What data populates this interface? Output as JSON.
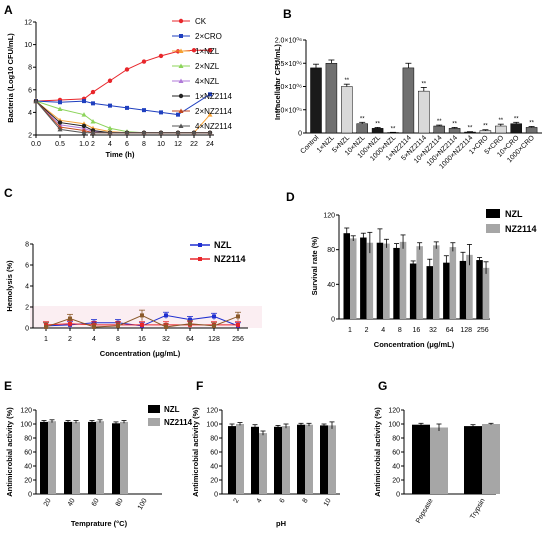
{
  "chart_data": [
    {
      "id": "A",
      "panel_label": "A",
      "type": "line",
      "ylabel": "Bacteria (Log10 CFU/mL)",
      "xlabel": "Time (h)",
      "x": [
        0,
        0.5,
        1,
        2,
        4,
        6,
        8,
        10,
        12,
        22,
        24
      ],
      "x_tick_labels": [
        "0.0",
        "0.5",
        "1.0",
        "2",
        "4",
        "6",
        "8",
        "10",
        "12",
        "22",
        "24"
      ],
      "y_ticks": [
        2,
        4,
        6,
        8,
        10,
        12
      ],
      "ylim": [
        2,
        12
      ],
      "series": [
        {
          "name": "CK",
          "color": "#e8262b",
          "marker": "circle",
          "values": [
            5.0,
            5.1,
            5.2,
            5.8,
            6.8,
            7.8,
            8.5,
            9.0,
            9.4,
            9.5,
            9.5
          ]
        },
        {
          "name": "2×CRO",
          "color": "#1f3fbf",
          "marker": "square",
          "values": [
            5.0,
            4.9,
            5.0,
            4.8,
            4.6,
            4.4,
            4.2,
            4.0,
            3.8,
            null,
            5.6
          ]
        },
        {
          "name": "1×NZL",
          "color": "#f5a033",
          "marker": "triangle",
          "values": [
            5.0,
            3.3,
            3.0,
            2.6,
            2.3,
            2.2,
            2.2,
            2.2,
            2.2,
            2.2,
            3.8
          ]
        },
        {
          "name": "2×NZL",
          "color": "#8cd45a",
          "marker": "triangle",
          "values": [
            5.0,
            4.3,
            3.8,
            3.2,
            2.6,
            2.3,
            2.2,
            2.2,
            2.2,
            2.2,
            2.2
          ]
        },
        {
          "name": "4×NZL",
          "color": "#b07ad8",
          "marker": "triangle",
          "values": [
            5.0,
            2.9,
            2.6,
            2.3,
            2.2,
            2.2,
            2.2,
            2.2,
            2.2,
            2.2,
            2.2
          ]
        },
        {
          "name": "1×NZ2114",
          "color": "#222222",
          "marker": "circle",
          "values": [
            5.0,
            3.1,
            2.8,
            2.4,
            2.2,
            2.2,
            2.2,
            2.2,
            2.2,
            2.2,
            2.2
          ]
        },
        {
          "name": "2×NZ2114",
          "color": "#c2461e",
          "marker": "triangle",
          "values": [
            5.0,
            2.7,
            2.4,
            2.2,
            2.2,
            2.2,
            2.2,
            2.2,
            2.2,
            2.2,
            2.2
          ]
        },
        {
          "name": "4×NZ2114",
          "color": "#555555",
          "marker": "triangle",
          "values": [
            5.0,
            2.5,
            2.2,
            2.2,
            2.2,
            2.2,
            2.2,
            2.2,
            2.2,
            2.2,
            2.2
          ]
        }
      ]
    },
    {
      "id": "B",
      "panel_label": "B",
      "type": "bar",
      "ylabel": "Intracellular CFU/mL)",
      "y_ticks": [
        0,
        500000,
        1000000,
        1500000,
        2000000
      ],
      "y_tick_labels": [
        "0",
        "5.0×10⁰⁵",
        "1.0×10⁰⁶",
        "1.5×10⁰⁶",
        "2.0×10⁰⁶"
      ],
      "ylim": [
        0,
        2000000
      ],
      "categories": [
        "Control",
        "1×NZL",
        "5×NZL",
        "10×NZL",
        "100×NZL",
        "1000×NZL",
        "1×NZ2114",
        "5×NZ2114",
        "10×NZ2114",
        "100×NZ2114",
        "1000×NZ2114",
        "1×CRO",
        "5×CRO",
        "10×CRO",
        "1000×CRO"
      ],
      "values": [
        1400000,
        1500000,
        1000000,
        200000,
        100000,
        10000,
        1400000,
        900000,
        150000,
        100000,
        20000,
        50000,
        150000,
        200000,
        120000
      ],
      "errors": [
        80000,
        70000,
        50000,
        30000,
        20000,
        5000,
        100000,
        80000,
        20000,
        20000,
        8000,
        20000,
        40000,
        30000,
        20000
      ],
      "colors": [
        "#1a1a1a",
        "#707070",
        "#d9d9d9",
        "#707070",
        "#1a1a1a",
        "#1a1a1a",
        "#707070",
        "#d9d9d9",
        "#707070",
        "#707070",
        "#1a1a1a",
        "#d9d9d9",
        "#d9d9d9",
        "#1a1a1a",
        "#707070"
      ],
      "significance": [
        "",
        "",
        "**",
        "**",
        "**",
        "**",
        "",
        "**",
        "**",
        "**",
        "**",
        "**",
        "**",
        "**",
        "**"
      ]
    },
    {
      "id": "C",
      "panel_label": "C",
      "type": "line",
      "ylabel": "Hemolysis (%)",
      "xlabel": "Concentration (μg/mL)",
      "categories": [
        "1",
        "2",
        "4",
        "8",
        "16",
        "32",
        "64",
        "128",
        "256"
      ],
      "y_ticks": [
        0,
        2,
        4,
        6,
        8
      ],
      "ylim": [
        0,
        8
      ],
      "series": [
        {
          "name": "NZL",
          "color": "#1f2fd0",
          "values": [
            0.2,
            0.3,
            0.5,
            0.5,
            0.2,
            1.2,
            0.8,
            1.1,
            0.2
          ],
          "errors": [
            0.3,
            0.3,
            0.3,
            0.3,
            0.3,
            0.3,
            0.3,
            0.3,
            0.3
          ]
        },
        {
          "name": "NZ2114",
          "color": "#e8262b",
          "values": [
            0.3,
            0.4,
            0.3,
            0.3,
            0.3,
            0.3,
            0.3,
            0.3,
            0.3
          ],
          "errors": [
            0.3,
            0.3,
            0.3,
            0.3,
            0.3,
            0.3,
            0.3,
            0.3,
            0.3
          ]
        },
        {
          "name": "",
          "color": "#8b5a2b",
          "values": [
            0.1,
            0.9,
            0.1,
            0.2,
            1.2,
            0.1,
            0.4,
            0.2,
            1.1
          ],
          "errors": [
            0.4,
            0.4,
            0.3,
            0.3,
            0.5,
            0.3,
            0.3,
            0.3,
            0.4
          ]
        }
      ]
    },
    {
      "id": "D",
      "panel_label": "D",
      "type": "bar",
      "ylabel": "Survival rate (%)",
      "xlabel": "Concentration (μg/mL)",
      "categories": [
        "1",
        "2",
        "4",
        "8",
        "16",
        "32",
        "64",
        "128",
        "256"
      ],
      "y_ticks": [
        0,
        40,
        80,
        120
      ],
      "ylim": [
        0,
        120
      ],
      "series": [
        {
          "name": "NZL",
          "color": "#000000",
          "values": [
            99,
            94,
            88,
            82,
            64,
            61,
            65,
            67,
            68
          ],
          "errors": [
            6,
            5,
            16,
            5,
            3,
            8,
            8,
            10,
            3
          ]
        },
        {
          "name": "NZ2114",
          "color": "#a6a6a6",
          "values": [
            93,
            88,
            87,
            89,
            84,
            85,
            83,
            74,
            59
          ],
          "errors": [
            3,
            12,
            5,
            8,
            4,
            4,
            5,
            12,
            7
          ]
        }
      ]
    },
    {
      "id": "E",
      "panel_label": "E",
      "type": "bar",
      "ylabel": "Antimicrobial activity (%)",
      "xlabel": "Temprature (°C)",
      "categories": [
        "20",
        "40",
        "60",
        "80",
        "100"
      ],
      "y_ticks": [
        0,
        20,
        40,
        60,
        80,
        100,
        120
      ],
      "ylim": [
        0,
        120
      ],
      "series": [
        {
          "name": "NZL",
          "color": "#000000",
          "values": [
            103,
            103,
            103,
            101,
            0
          ],
          "errors": [
            2,
            2,
            2,
            2,
            0
          ]
        },
        {
          "name": "NZ2114",
          "color": "#a6a6a6",
          "values": [
            104,
            103,
            104,
            103,
            0
          ],
          "errors": [
            2,
            2,
            2,
            2,
            0
          ]
        }
      ]
    },
    {
      "id": "F",
      "panel_label": "F",
      "type": "bar",
      "ylabel": "Antimicrobial activity (%)",
      "xlabel": "pH",
      "categories": [
        "2",
        "4",
        "6",
        "8",
        "10"
      ],
      "y_ticks": [
        0,
        20,
        40,
        60,
        80,
        100,
        120
      ],
      "ylim": [
        0,
        120
      ],
      "series": [
        {
          "name": "",
          "color": "#000000",
          "values": [
            97,
            96,
            96,
            99,
            98
          ],
          "errors": [
            3,
            3,
            2,
            2,
            2
          ]
        },
        {
          "name": "",
          "color": "#a6a6a6",
          "values": [
            100,
            87,
            97,
            99,
            98
          ],
          "errors": [
            2,
            3,
            3,
            2,
            5
          ]
        }
      ]
    },
    {
      "id": "G",
      "panel_label": "G",
      "type": "bar",
      "ylabel": "Antimicrobial activity (%)",
      "categories": [
        "Pepsase",
        "Trypsin"
      ],
      "y_ticks": [
        0,
        20,
        40,
        60,
        80,
        100,
        120
      ],
      "ylim": [
        0,
        120
      ],
      "series": [
        {
          "name": "",
          "color": "#000000",
          "values": [
            99,
            97
          ],
          "errors": [
            2,
            2
          ]
        },
        {
          "name": "",
          "color": "#a6a6a6",
          "values": [
            95,
            100
          ],
          "errors": [
            5,
            1
          ]
        }
      ]
    }
  ]
}
